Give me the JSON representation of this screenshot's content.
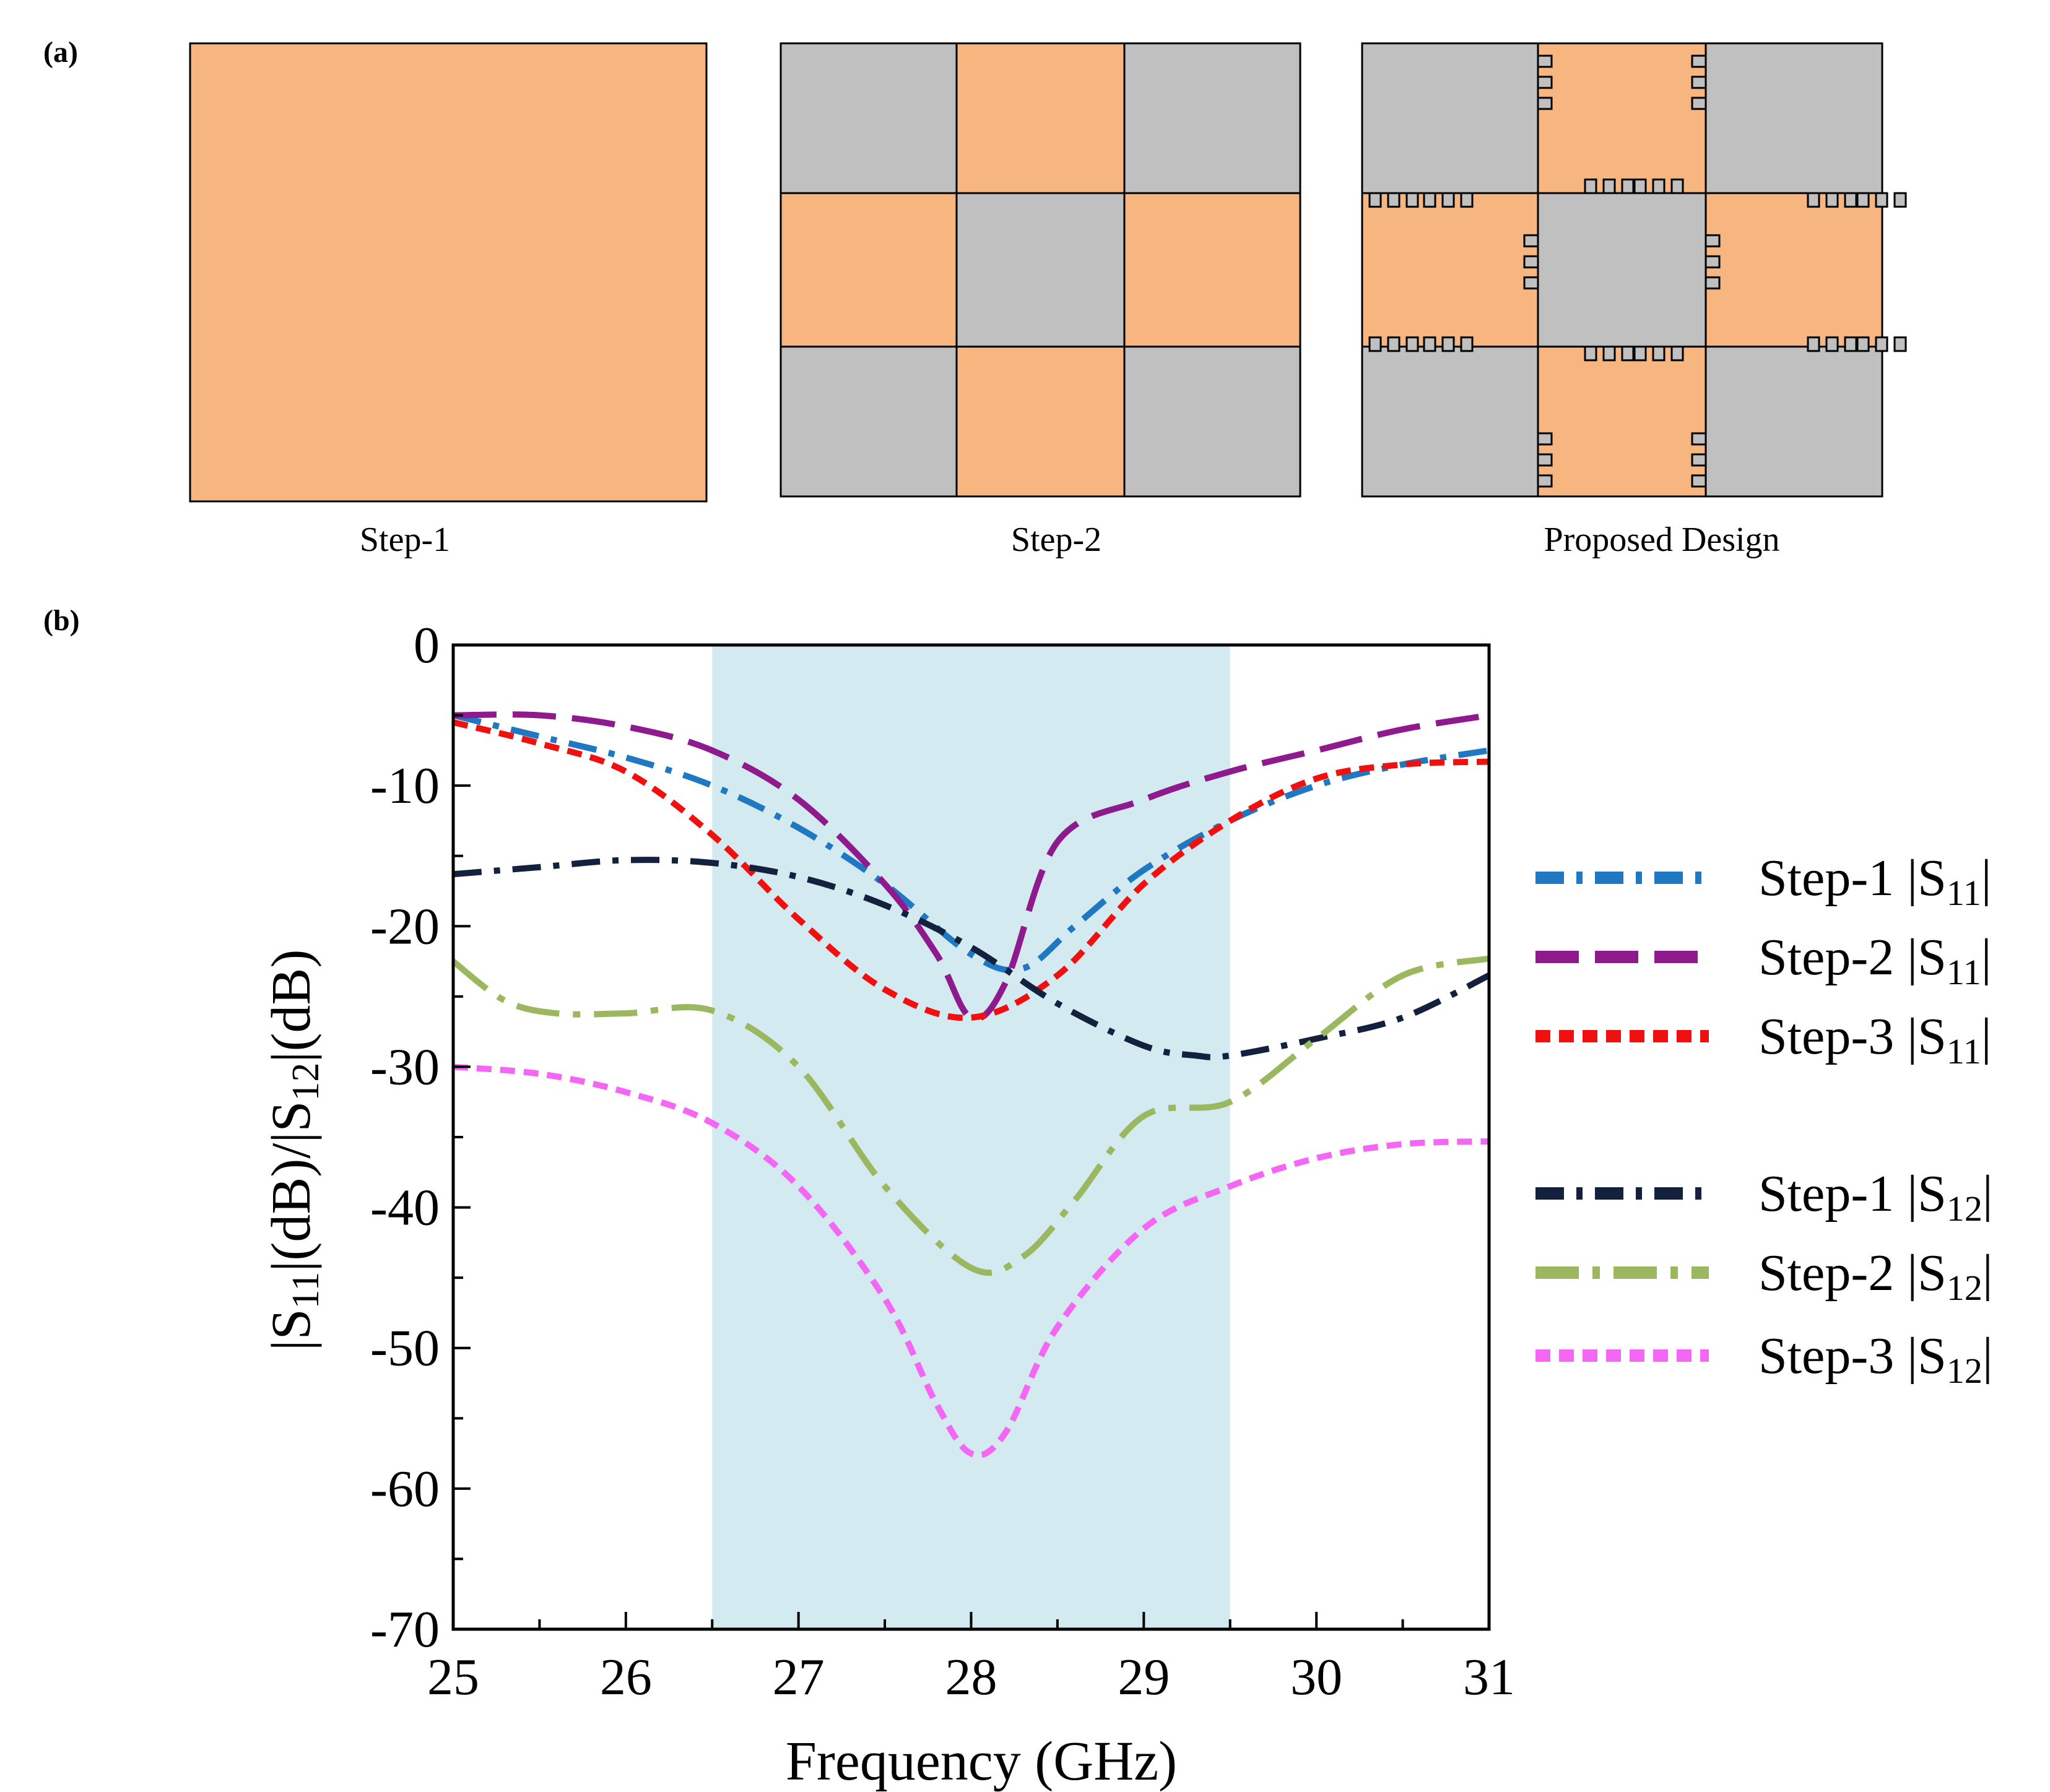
{
  "panel_a": {
    "label": "(a)",
    "captions": [
      "Step-1",
      "Step-2",
      "Proposed Design"
    ],
    "colors": {
      "copper": "#F7B57F",
      "gray": "#C0C0C0",
      "outline": "#000000"
    }
  },
  "panel_b": {
    "label": "(b)"
  },
  "chart_data": {
    "type": "line",
    "title": "",
    "xlabel": "Frequency (GHz)",
    "ylabel_parts": {
      "a": "|S",
      "b": "11",
      "c": "|(dB)/|S",
      "d": "12",
      "e": "|(dB)"
    },
    "xlim": [
      25,
      31
    ],
    "ylim": [
      -70,
      0
    ],
    "x_ticks": [
      25,
      26,
      27,
      28,
      29,
      30,
      31
    ],
    "y_ticks": [
      0,
      -10,
      -20,
      -30,
      -40,
      -50,
      -60,
      -70
    ],
    "y_tick_labels": [
      "0",
      "-10",
      "-20",
      "-30",
      "-40",
      "-50",
      "-60",
      "-70"
    ],
    "shaded_band": {
      "x_start": 26.5,
      "x_end": 29.5,
      "color": "#D2EAF0"
    },
    "grid": false,
    "legend_position": "right",
    "series": [
      {
        "name": "Step-1 |S11|",
        "label_main": "Step-1 |S",
        "label_sub": "11",
        "label_end": "|",
        "color": "#1F78C1",
        "dash": "dashdot",
        "width": 10,
        "x": [
          25,
          25.5,
          26,
          26.5,
          27,
          27.5,
          28,
          28.3,
          28.6,
          29,
          29.5,
          30,
          30.5,
          31
        ],
        "values": [
          -5,
          -6.5,
          -8,
          -10,
          -13,
          -17,
          -22,
          -23,
          -20,
          -16,
          -12.5,
          -10,
          -8.5,
          -7.5
        ]
      },
      {
        "name": "Step-2 |S11|",
        "label_main": "Step-2 |S",
        "label_sub": "11",
        "label_end": "|",
        "color": "#8E1A8E",
        "dash": "longdash",
        "width": 10,
        "x": [
          25,
          25.5,
          26,
          26.5,
          27,
          27.5,
          27.8,
          28,
          28.2,
          28.5,
          29,
          29.5,
          30,
          30.5,
          31
        ],
        "values": [
          -5,
          -5,
          -5.8,
          -7.5,
          -11,
          -17,
          -22,
          -26.5,
          -24,
          -14,
          -11,
          -9,
          -7.5,
          -6,
          -5
        ]
      },
      {
        "name": "Step-3 |S11|",
        "label_main": "Step-3 |S",
        "label_sub": "11",
        "label_end": "|",
        "color": "#F01010",
        "dash": "dashed",
        "width": 10,
        "x": [
          25,
          25.5,
          26,
          26.5,
          27,
          27.5,
          28,
          28.5,
          29,
          29.5,
          30,
          30.5,
          31
        ],
        "values": [
          -5.5,
          -7,
          -9,
          -13.5,
          -19.5,
          -24.5,
          -26.5,
          -23.5,
          -17,
          -12.5,
          -9.5,
          -8.5,
          -8.3
        ]
      },
      {
        "name": "Step-1 |S12|",
        "label_main": "Step-1 |S",
        "label_sub": "12",
        "label_end": "|",
        "color": "#13203E",
        "dash": "dashdot",
        "width": 10,
        "x": [
          25,
          25.5,
          26,
          26.5,
          27,
          27.5,
          28,
          28.5,
          29,
          29.3,
          29.5,
          30,
          30.5,
          31
        ],
        "values": [
          -16.3,
          -15.8,
          -15.3,
          -15.5,
          -16.5,
          -18.5,
          -21.5,
          -25.5,
          -28.5,
          -29.2,
          -29.2,
          -28,
          -26.5,
          -23.5
        ]
      },
      {
        "name": "Step-2 |S12|",
        "label_main": "Step-2 |S",
        "label_sub": "12",
        "label_end": "|",
        "color": "#9BB860",
        "dash": "longdashdot",
        "width": 10,
        "x": [
          25,
          25.3,
          25.6,
          26,
          26.5,
          27,
          27.5,
          28,
          28.3,
          28.6,
          29,
          29.5,
          30,
          30.5,
          31
        ],
        "values": [
          -22.5,
          -25.3,
          -26.2,
          -26.2,
          -26,
          -30,
          -38.5,
          -44.3,
          -43.5,
          -39.5,
          -33.5,
          -32.5,
          -28,
          -23.5,
          -22.3
        ]
      },
      {
        "name": "Step-3 |S12|",
        "label_main": "Step-3 |S",
        "label_sub": "12",
        "label_end": "|",
        "color": "#F466F4",
        "dash": "dashed",
        "width": 10,
        "x": [
          25,
          25.5,
          26,
          26.5,
          27,
          27.5,
          27.8,
          28,
          28.2,
          28.5,
          29,
          29.5,
          30,
          30.5,
          31
        ],
        "values": [
          -30,
          -30.5,
          -31.8,
          -34,
          -38.5,
          -46.5,
          -54,
          -57.5,
          -56,
          -48.5,
          -41.5,
          -38.5,
          -36.5,
          -35.5,
          -35.3
        ]
      }
    ]
  }
}
